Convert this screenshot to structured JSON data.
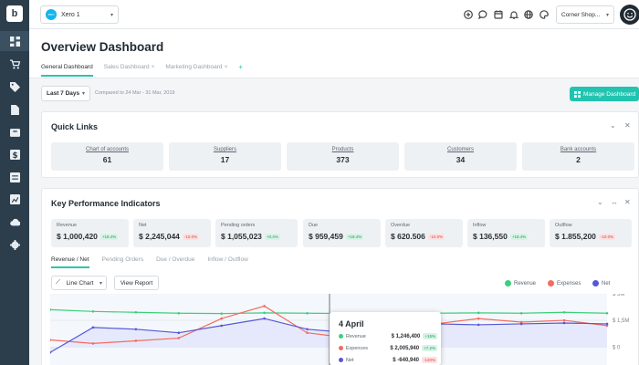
{
  "sidebar": {
    "logo": "b",
    "items": [
      {
        "icon": "dashboard-icon"
      },
      {
        "icon": "cart-icon"
      },
      {
        "icon": "tag-icon"
      },
      {
        "icon": "document-icon"
      },
      {
        "icon": "box-icon"
      },
      {
        "icon": "dollar-icon"
      },
      {
        "icon": "report-icon"
      },
      {
        "icon": "chart-icon"
      },
      {
        "icon": "cloud-icon"
      },
      {
        "icon": "settings-icon"
      }
    ]
  },
  "topbar": {
    "org_badge": "xero",
    "org_name": "Xero 1",
    "shop_name": "Corner Shop...",
    "icons": [
      "add-icon",
      "chat-icon",
      "calendar-icon",
      "bell-icon",
      "globe-icon",
      "palette-icon"
    ]
  },
  "header": {
    "title": "Overview Dashboard",
    "tabs": [
      {
        "label": "General Dashboard",
        "active": true
      },
      {
        "label": "Sales Dashboard",
        "closable": "×"
      },
      {
        "label": "Marketing Dashboard",
        "closable": "×"
      }
    ],
    "add_tab": "+"
  },
  "filters": {
    "date_range": "Last 7 Days",
    "compare_text": "Compared to 24 Mar - 31 Mar, 2019",
    "manage_label": "Manage Dashboard"
  },
  "quick_links": {
    "title": "Quick Links",
    "items": [
      {
        "label": "Chart of accounts",
        "value": "61"
      },
      {
        "label": "Suppliers",
        "value": "17"
      },
      {
        "label": "Products",
        "value": "373"
      },
      {
        "label": "Customers",
        "value": "34"
      },
      {
        "label": "Bank accounts",
        "value": "2"
      }
    ]
  },
  "kpi": {
    "title": "Key Performance Indicators",
    "items": [
      {
        "label": "Revenue",
        "value": "$ 1,000,420",
        "change": "+18.4%",
        "trend": "up"
      },
      {
        "label": "Net",
        "value": "$ 2,245,044",
        "change": "-10.0%",
        "trend": "down"
      },
      {
        "label": "Pending orders",
        "value": "$ 1,055,023",
        "change": "+0.4%",
        "trend": "up"
      },
      {
        "label": "Due",
        "value": "$ 959,459",
        "change": "+18.4%",
        "trend": "up"
      },
      {
        "label": "Overdue",
        "value": "$ 620.506",
        "change": "-10.0%",
        "trend": "down"
      },
      {
        "label": "Inflow",
        "value": "$ 136,550",
        "change": "+18.4%",
        "trend": "up"
      },
      {
        "label": "Outflow",
        "value": "$ 1.855,200",
        "change": "-10.0%",
        "trend": "down"
      }
    ],
    "sub_tabs": [
      "Revenue / Net",
      "Pending Orders",
      "Due / Overdue",
      "Inflow / Outflow"
    ],
    "chart_type_label": "Line Chart",
    "view_report_label": "View Report"
  },
  "chart_data": {
    "type": "line",
    "series": [
      {
        "name": "Revenue",
        "color": "#3ccf7e",
        "values": [
          2.1,
          2.0,
          1.95,
          1.9,
          1.88,
          1.92,
          1.9,
          1.88,
          1.86,
          1.9,
          1.92,
          1.9,
          1.95,
          1.9
        ]
      },
      {
        "name": "Expenses",
        "color": "#f36c5f",
        "values": [
          0.4,
          0.2,
          0.35,
          0.5,
          1.6,
          2.3,
          0.8,
          0.5,
          1.0,
          1.3,
          1.6,
          1.4,
          1.5,
          1.2
        ]
      },
      {
        "name": "Net",
        "color": "#5558d6",
        "values": [
          -0.3,
          1.1,
          1.0,
          0.8,
          1.2,
          1.6,
          1.0,
          0.8,
          1.1,
          1.3,
          1.25,
          1.3,
          1.35,
          1.3
        ]
      }
    ],
    "y_ticks": [
      "$ 3M",
      "$ 1,5M",
      "$ 0"
    ],
    "ylim": [
      -0.6,
      3.4
    ],
    "tooltip": {
      "title": "4 April",
      "rows": [
        {
          "name": "Revenue",
          "value": "$ 1,246,400",
          "change": "+15%",
          "trend": "up"
        },
        {
          "name": "Expences",
          "value": "$ 2,005,940",
          "change": "+7.2%",
          "trend": "up"
        },
        {
          "name": "Net",
          "value": "$ -640,940",
          "change": "-120%",
          "trend": "down"
        }
      ]
    }
  }
}
